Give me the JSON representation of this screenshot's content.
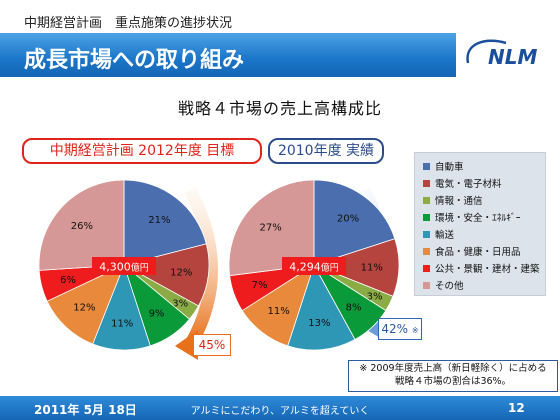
{
  "header": {
    "breadcrumb": "中期経営計画　重点施策の進捗状況",
    "title": "成長市場への取り組み",
    "logo_text": "NLM"
  },
  "subtitle": "戦略４市場の売上高構成比",
  "plan_label": "中期経営計画 2012年度 目標",
  "actual_label": "2010年度 実績",
  "legend": [
    {
      "label": "自動車",
      "color": "#4b6fae"
    },
    {
      "label": "電気・電子材料",
      "color": "#b5443f"
    },
    {
      "label": "情報・通信",
      "color": "#8bac45"
    },
    {
      "label": "環境・安全・ｴﾈﾙｷﾞｰ",
      "color": "#0a9a3a"
    },
    {
      "label": "輸送",
      "color": "#2e97b5"
    },
    {
      "label": "食品・健康・日用品",
      "color": "#e9893b"
    },
    {
      "label": "公共・景観・建材・建築",
      "color": "#ee1c1c"
    },
    {
      "label": "その他",
      "color": "#d69896"
    }
  ],
  "plan_total": {
    "value": "4,300",
    "unit": "億円"
  },
  "actual_total": {
    "value": "4,294",
    "unit": "億円"
  },
  "plan_share": "45%",
  "actual_share": "42%",
  "actual_share_mark": "※",
  "note_line1": "※ 2009年度売上高（新日軽除く）に占める",
  "note_line2": "戦略４市場の割合は36%。",
  "footer": {
    "date": "2011年 5月 18日",
    "slogan": "アルミにこだわり、アルミを超えていく",
    "page": "12"
  },
  "chart_data": [
    {
      "type": "pie",
      "title": "中期経営計画 2012年度 目標",
      "categories": [
        "自動車",
        "電気・電子材料",
        "情報・通信",
        "環境・安全・ｴﾈﾙｷﾞｰ",
        "輸送",
        "食品・健康・日用品",
        "公共・景観・建材・建築",
        "その他"
      ],
      "values": [
        21,
        12,
        3,
        9,
        11,
        12,
        6,
        26
      ],
      "labels": [
        "21%",
        "12%",
        "3%",
        "9%",
        "11%",
        "12%",
        "6%",
        "26%"
      ],
      "center_label": "4,300億円"
    },
    {
      "type": "pie",
      "title": "2010年度 実績",
      "categories": [
        "自動車",
        "電気・電子材料",
        "情報・通信",
        "環境・安全・ｴﾈﾙｷﾞｰ",
        "輸送",
        "食品・健康・日用品",
        "公共・景観・建材・建築",
        "その他"
      ],
      "values": [
        20,
        11,
        3,
        8,
        13,
        11,
        7,
        27
      ],
      "labels": [
        "20%",
        "11%",
        "3%",
        "8%",
        "13%",
        "11%",
        "7%",
        "27%"
      ],
      "center_label": "4,294億円"
    }
  ]
}
